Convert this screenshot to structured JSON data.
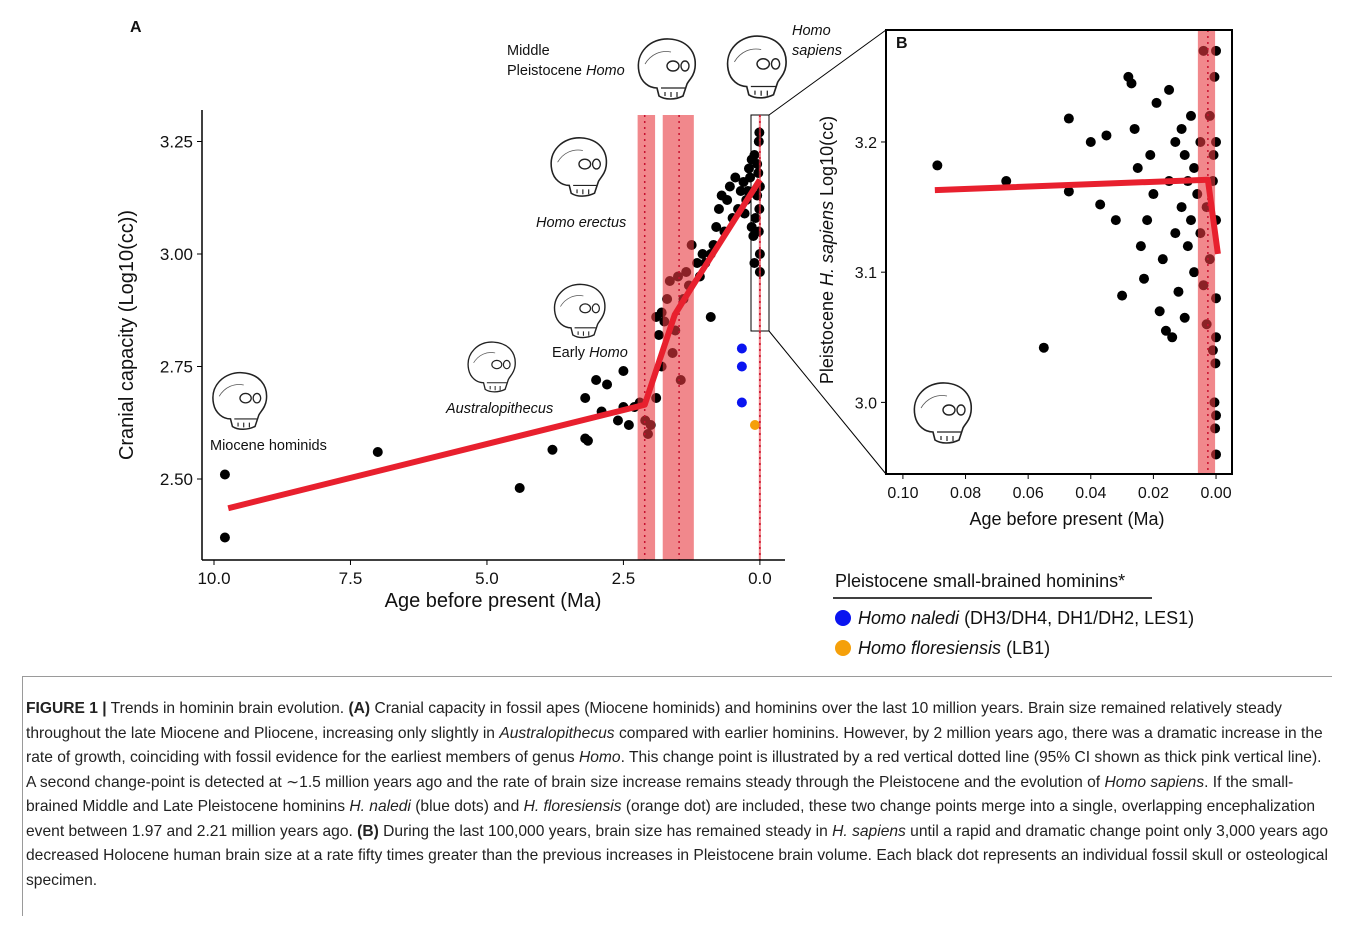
{
  "chart_data": [
    {
      "type": "scatter",
      "label": "A",
      "xlabel": "Age before present (Ma)",
      "ylabel": "Cranial capacity (Log10(cc))",
      "xlim": [
        10.22,
        -0.46
      ],
      "ylim": [
        2.32,
        3.32
      ],
      "xticks": [
        {
          "value": 10,
          "label": "10.0"
        },
        7.5,
        {
          "value": 5,
          "label": "5.0"
        },
        2.5,
        {
          "value": 0,
          "label": "0.0"
        }
      ],
      "yticks": [
        {
          "value": 2.5,
          "label": "2.50"
        },
        2.75,
        {
          "value": 3,
          "label": "3.00"
        },
        3.25
      ],
      "series": [
        {
          "color": "#000000",
          "x": [
            9.8,
            9.8,
            7.0,
            4.4,
            3.8,
            3.2,
            3.15,
            3.2,
            3.0,
            2.9,
            2.8,
            2.6,
            2.5,
            2.5,
            2.4,
            2.3,
            2.2,
            2.1,
            2.0,
            1.9,
            1.85,
            1.8,
            1.8,
            1.75,
            1.7,
            1.65,
            1.6,
            1.55,
            1.5,
            1.45,
            1.4,
            1.35,
            1.3,
            1.25,
            1.15,
            1.1,
            1.05,
            1.0,
            0.9,
            0.85,
            0.8,
            0.75,
            0.7,
            0.65,
            0.6,
            0.55,
            0.5,
            0.45,
            0.4,
            0.35,
            0.3,
            0.25,
            0.2,
            0.15,
            0.1,
            0.05,
            0.02,
            0.01,
            0.0,
            0.0,
            0.0,
            0.01,
            0.02,
            0.03,
            0.05,
            0.08,
            0.1,
            0.12,
            0.15,
            0.18,
            0.22,
            0.28,
            0.9,
            2.05,
            1.9
          ],
          "y": [
            2.51,
            2.37,
            2.56,
            2.48,
            2.565,
            2.59,
            2.585,
            2.68,
            2.72,
            2.65,
            2.71,
            2.63,
            2.74,
            2.66,
            2.62,
            2.66,
            2.67,
            2.63,
            2.62,
            2.68,
            2.82,
            2.75,
            2.87,
            2.85,
            2.9,
            2.94,
            2.78,
            2.83,
            2.95,
            2.72,
            2.9,
            2.96,
            2.93,
            3.02,
            2.98,
            2.95,
            3.0,
            2.98,
            2.86,
            3.02,
            3.06,
            3.1,
            3.13,
            3.05,
            3.12,
            3.15,
            3.08,
            3.17,
            3.1,
            3.14,
            3.16,
            3.12,
            3.19,
            3.06,
            3.22,
            3.2,
            3.25,
            3.27,
            3.15,
            3.0,
            2.96,
            3.1,
            3.05,
            3.18,
            3.13,
            3.08,
            2.98,
            3.04,
            3.21,
            3.17,
            3.14,
            3.09,
            3.0,
            2.6,
            2.86
          ]
        },
        {
          "color": "#0a14f0",
          "x": [
            0.33,
            0.33,
            0.33
          ],
          "y": [
            2.79,
            2.75,
            2.67
          ]
        },
        {
          "color": "#f5a00a",
          "x": [
            0.09
          ],
          "y": [
            2.62
          ]
        }
      ],
      "change_points": [
        {
          "value": 2.11,
          "ci": [
            2.24,
            1.92
          ],
          "color": "#e8383f"
        },
        {
          "value": 1.48,
          "ci": [
            1.78,
            1.21
          ],
          "color": "#e8383f"
        },
        {
          "value": 0.0,
          "ci": [
            0.02,
            -0.02
          ],
          "color": "#e8383f"
        }
      ],
      "fit": {
        "color": "#e8202e",
        "x": [
          9.74,
          2.11,
          1.56,
          1.28,
          0.0
        ],
        "y": [
          2.435,
          2.665,
          2.865,
          2.92,
          3.165
        ]
      },
      "annotations": [
        {
          "lines": [
            [
              {
                "text": "Miocene hominids"
              }
            ]
          ]
        },
        {
          "lines": [
            [
              {
                "text": "Australopithecus",
                "style": "italic"
              }
            ]
          ]
        },
        {
          "lines": [
            [
              {
                "text": "Early "
              },
              {
                "text": "Homo",
                "style": "italic"
              }
            ]
          ]
        },
        {
          "lines": [
            [
              {
                "text": "Homo erectus",
                "style": "italic"
              }
            ]
          ]
        },
        {
          "lines": [
            [
              {
                "text": "Middle"
              }
            ],
            [
              {
                "text": "Pleistocene "
              },
              {
                "text": "Homo",
                "style": "italic"
              }
            ]
          ]
        },
        {
          "lines": [
            [
              {
                "text": "Homo",
                "style": "italic"
              }
            ],
            [
              {
                "text": "sapiens",
                "style": "italic"
              }
            ]
          ]
        }
      ]
    },
    {
      "type": "scatter",
      "label": "B",
      "xlabel": "Age before present (Ma)",
      "ylabel": [
        {
          "text": "Pleistocene "
        },
        {
          "text": "H. sapiens",
          "style": "italic"
        },
        {
          "text": " Log10(cc)"
        }
      ],
      "xlim": [
        0.1054,
        -0.0051
      ],
      "ylim": [
        2.945,
        3.286
      ],
      "xticks": [
        {
          "value": 0.1,
          "label": "0.10"
        },
        0.08,
        0.06,
        0.04,
        0.02,
        {
          "value": 0,
          "label": "0.00"
        }
      ],
      "yticks": [
        {
          "value": 3,
          "label": "3.0"
        },
        3.1,
        3.2
      ],
      "series": [
        {
          "color": "#000000",
          "x": [
            0.089,
            0.067,
            0.055,
            0.047,
            0.047,
            0.04,
            0.037,
            0.035,
            0.032,
            0.03,
            0.028,
            0.027,
            0.026,
            0.025,
            0.024,
            0.023,
            0.022,
            0.021,
            0.02,
            0.019,
            0.018,
            0.017,
            0.016,
            0.015,
            0.015,
            0.014,
            0.013,
            0.013,
            0.012,
            0.011,
            0.011,
            0.01,
            0.01,
            0.009,
            0.009,
            0.008,
            0.008,
            0.007,
            0.007,
            0.006,
            0.005,
            0.005,
            0.004,
            0.004,
            0.003,
            0.003,
            0.002,
            0.002,
            0.001,
            0.001,
            0.0005,
            0.0005,
            0.0003,
            0.0002,
            0.0,
            0.0,
            0.0,
            0.0,
            0.0,
            0.0008,
            0.0,
            0.0
          ],
          "y": [
            3.182,
            3.17,
            3.042,
            3.218,
            3.162,
            3.2,
            3.152,
            3.205,
            3.14,
            3.082,
            3.25,
            3.245,
            3.21,
            3.18,
            3.12,
            3.095,
            3.14,
            3.19,
            3.16,
            3.23,
            3.07,
            3.11,
            3.055,
            3.24,
            3.17,
            3.05,
            3.13,
            3.2,
            3.085,
            3.21,
            3.15,
            3.065,
            3.19,
            3.12,
            3.17,
            3.22,
            3.14,
            3.1,
            3.18,
            3.16,
            3.2,
            3.13,
            3.09,
            3.27,
            3.15,
            3.06,
            3.22,
            3.11,
            3.17,
            3.04,
            3.25,
            3.0,
            2.98,
            3.03,
            2.96,
            3.08,
            3.14,
            3.2,
            3.27,
            3.19,
            3.05,
            2.99
          ]
        }
      ],
      "change_points": [
        {
          "value": 0.0026,
          "ci": [
            0.0058,
            0.0003
          ],
          "color": "#e8383f"
        }
      ],
      "fit": {
        "color": "#e8202e",
        "x": [
          0.0898,
          0.0026,
          -0.0006
        ],
        "y": [
          3.163,
          3.171,
          3.114
        ]
      }
    }
  ],
  "legend": {
    "title": "Pleistocene small-brained hominins*",
    "entries": [
      {
        "color": "#0a14f0",
        "runs": [
          {
            "text": "Homo naledi",
            "style": "italic"
          },
          {
            "text": " (DH3/DH4, DH1/DH2, LES1)"
          }
        ]
      },
      {
        "color": "#f5a00a",
        "runs": [
          {
            "text": "Homo floresiensis",
            "style": "italic"
          },
          {
            "text": " (LB1)"
          }
        ]
      }
    ]
  },
  "caption": {
    "runs": [
      {
        "text": "FIGURE 1 |",
        "style": "bold"
      },
      {
        "text": " Trends in hominin brain evolution. "
      },
      {
        "text": "(A)",
        "style": "bold"
      },
      {
        "text": " Cranial capacity in fossil apes (Miocene hominids) and hominins over the last 10 million years. Brain size remained relatively steady throughout the late Miocene and Pliocene, increasing only slightly in "
      },
      {
        "text": "Australopithecus",
        "style": "italic"
      },
      {
        "text": " compared with earlier hominins. However, by 2 million years ago, there was a dramatic increase in the rate of growth, coinciding with fossil evidence for the earliest members of genus "
      },
      {
        "text": "Homo",
        "style": "italic"
      },
      {
        "text": ". This change point is illustrated by a red vertical dotted line (95% CI shown as thick pink vertical line). A second change-point is detected at ∼1.5 million years ago and the rate of brain size increase remains steady through the Pleistocene and the evolution of "
      },
      {
        "text": "Homo sapiens",
        "style": "italic"
      },
      {
        "text": ". If the small-brained Middle and Late Pleistocene hominins "
      },
      {
        "text": "H. naledi",
        "style": "italic"
      },
      {
        "text": " (blue dots) and "
      },
      {
        "text": "H. floresiensis",
        "style": "italic"
      },
      {
        "text": " (orange dot) are included, these two change points merge into a single, overlapping encephalization event between 1.97 and 2.21 million years ago. "
      },
      {
        "text": "(B)",
        "style": "bold"
      },
      {
        "text": " During the last 100,000 years, brain size has remained steady in "
      },
      {
        "text": "H. sapiens",
        "style": "italic"
      },
      {
        "text": " until a rapid and dramatic change point only 3,000 years ago decreased Holocene human brain size at a rate fifty times greater than the previous increases in Pleistocene brain volume. Each black dot represents an individual fossil skull or osteological specimen."
      }
    ]
  }
}
